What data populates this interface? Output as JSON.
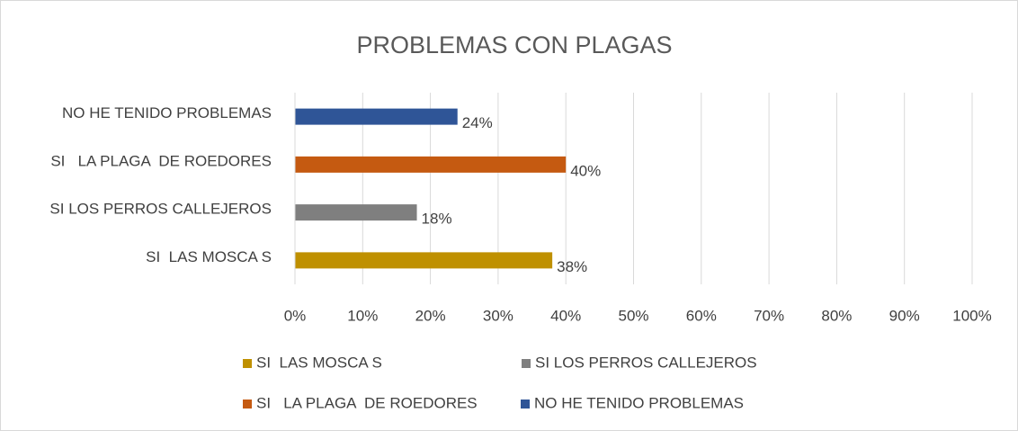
{
  "chart_data": {
    "type": "bar",
    "orientation": "horizontal",
    "title": "PROBLEMAS CON PLAGAS",
    "categories": [
      "SI  LAS MOSCA S",
      "SI LOS PERROS CALLEJEROS",
      "SI   LA PLAGA  DE ROEDORES",
      "NO HE TENIDO PROBLEMAS"
    ],
    "values": [
      38,
      18,
      40,
      24
    ],
    "value_labels": [
      "38%",
      "18%",
      "40%",
      "24%"
    ],
    "colors": [
      "#bf9000",
      "#7f7f7f",
      "#c55a11",
      "#2f5597"
    ],
    "xlim": [
      0,
      100
    ],
    "xticks": [
      {
        "value": 0,
        "label": "0%"
      },
      {
        "value": 10,
        "label": "10%"
      },
      {
        "value": 20,
        "label": "20%"
      },
      {
        "value": 30,
        "label": "30%"
      },
      {
        "value": 40,
        "label": "40%"
      },
      {
        "value": 50,
        "label": "50%"
      },
      {
        "value": 60,
        "label": "60%"
      },
      {
        "value": 70,
        "label": "70%"
      },
      {
        "value": 80,
        "label": "80%"
      },
      {
        "value": 90,
        "label": "90%"
      },
      {
        "value": 100,
        "label": "100%"
      }
    ],
    "grid": true,
    "legend": "bottom"
  }
}
